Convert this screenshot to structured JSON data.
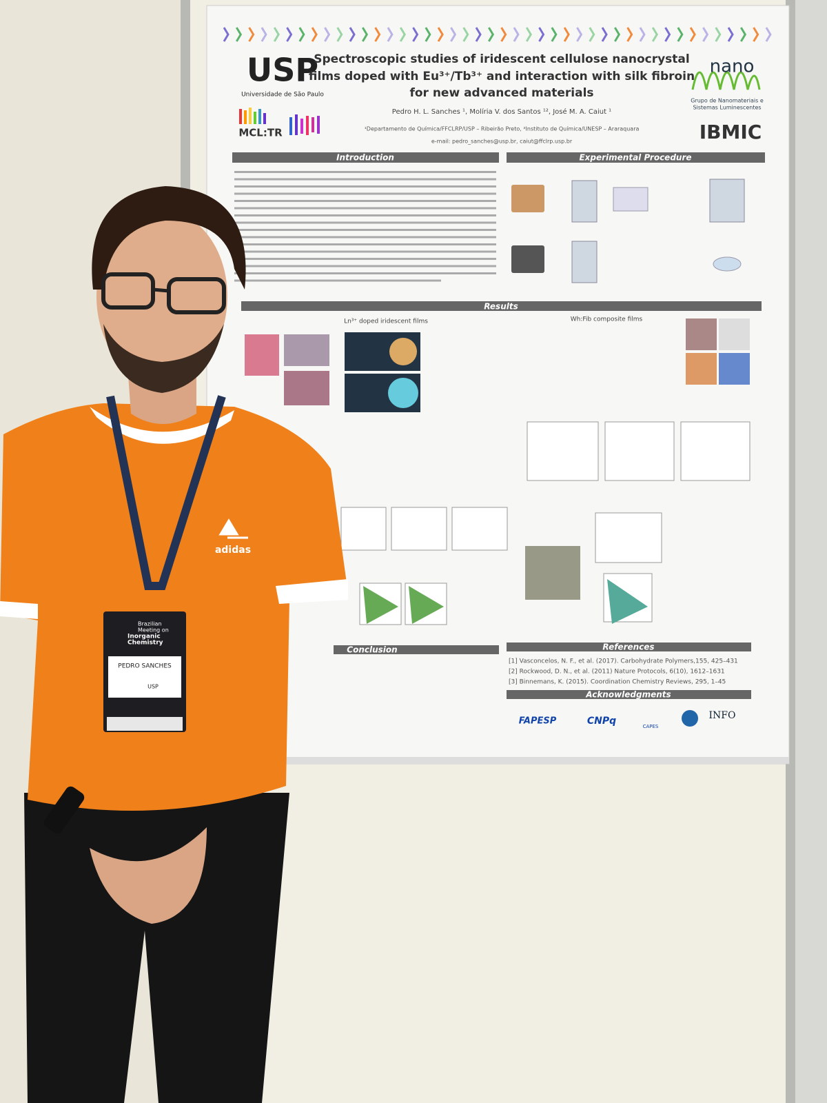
{
  "poster": {
    "logo_usp": "USP",
    "university": "Universidade de São Paulo",
    "logo_mcltr": "MCL:TR",
    "title_lines": [
      "Spectroscopic studies of iridescent cellulose nanocrystal",
      "films doped with Eu³⁺/Tb³⁺ and interaction with silk fibroin",
      "for new advanced materials"
    ],
    "authors": "Pedro H. L. Sanches ¹, Molíria V. dos Santos ¹², José M. A. Caiut ¹",
    "affiliation": "¹Departamento de Química/FFCLRP/USP – Ribeirão Preto, ²Instituto de Química/UNESP – Araraquara",
    "email": "e-mail: pedro_sanches@usp.br, caiut@ffclrp.usp.br",
    "logo_nano": "nano",
    "group": [
      "Grupo de Nanomateriais e",
      "Sistemas Luminescentes"
    ],
    "logo_ibmic": "IBMIC",
    "sections": {
      "introduction": "Introduction",
      "experimental": "Experimental Procedure",
      "results": "Results",
      "conclusion": "Conclusion",
      "references": "References",
      "acknowledgments": "Acknowledgments"
    },
    "subheads": [
      "Ln³⁺ doped iridescent films",
      "Wh:Fib composite films"
    ],
    "references": [
      "[1] Vasconcelos, N. F., et al. (2017). Carbohydrate Polymers,155, 425–431",
      "[2] Rockwood, D. N., et al. (2011) Nature Protocols, 6(10), 1612–1631",
      "[3] Binnemans, K. (2015). Coordination Chemistry Reviews, 295, 1–45"
    ],
    "sponsors": [
      "FAPESP",
      "CNPq",
      "CAPES",
      "INFO"
    ]
  },
  "badge": {
    "event": [
      "Brazilian",
      "Meeting on",
      "Inorganic",
      "Chemistry"
    ],
    "name": "PEDRO SANCHES",
    "institution": "USP"
  },
  "shirt_logo": "adidas"
}
